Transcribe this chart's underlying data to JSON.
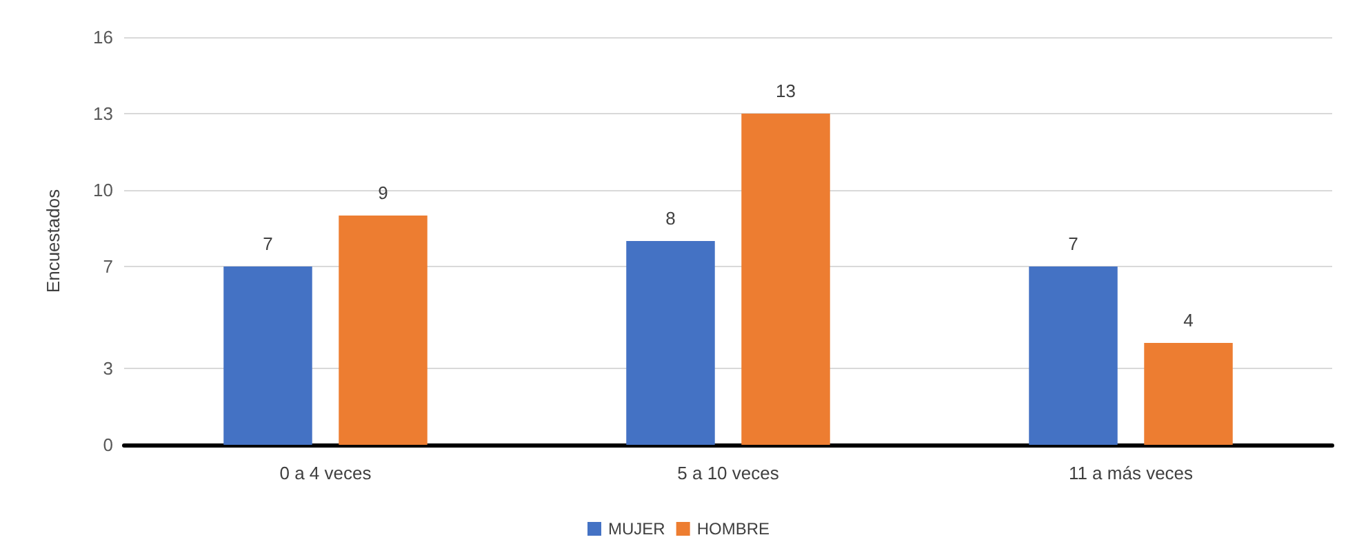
{
  "chart_data": {
    "type": "bar",
    "ylabel": "Encuestados",
    "categories": [
      "0 a 4 veces",
      "5 a 10 veces",
      "11 a más veces"
    ],
    "series": [
      {
        "name": "MUJER",
        "color": "#4472c4",
        "values": [
          7,
          8,
          7
        ]
      },
      {
        "name": "HOMBRE",
        "color": "#ed7d31",
        "values": [
          9,
          13,
          4
        ]
      }
    ],
    "ylim": [
      0,
      16
    ],
    "yticks": [
      0,
      3,
      7,
      10,
      13,
      16
    ],
    "grid": "y",
    "legend": "bottom",
    "data_labels": true
  }
}
